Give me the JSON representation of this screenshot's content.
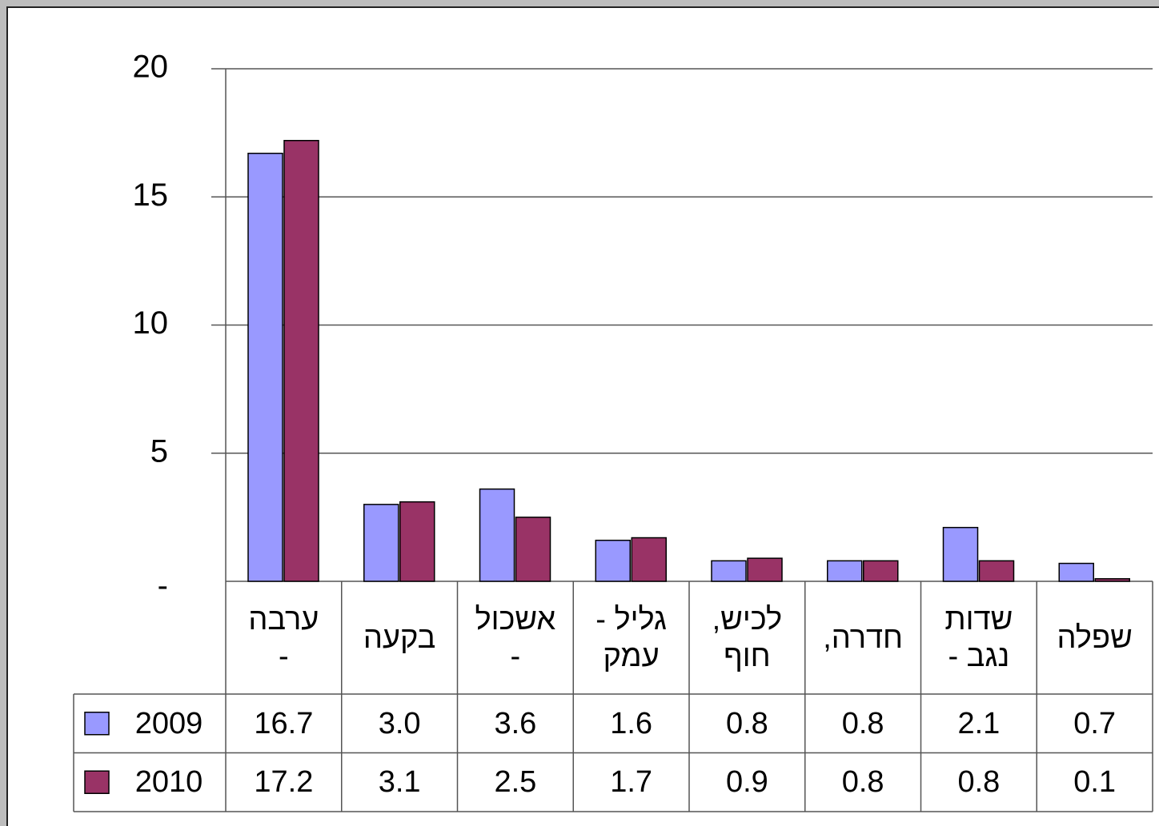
{
  "chart_data": {
    "type": "bar",
    "categories": [
      "ערבה\n-",
      "בקעה",
      "אשכול\n-",
      "גליל -\nעמק",
      "לכיש,\nחוף",
      "חדרה,",
      "שדות\nנגב -",
      "שפלה"
    ],
    "series": [
      {
        "name": "2009",
        "color": "#9999ff",
        "values": [
          16.7,
          3.0,
          3.6,
          1.6,
          0.8,
          0.8,
          2.1,
          0.7
        ],
        "value_labels": [
          "16.7",
          "3.0",
          "3.6",
          "1.6",
          "0.8",
          "0.8",
          "2.1",
          "0.7"
        ]
      },
      {
        "name": "2010",
        "color": "#993366",
        "values": [
          17.2,
          3.1,
          2.5,
          1.7,
          0.9,
          0.8,
          0.8,
          0.1
        ],
        "value_labels": [
          "17.2",
          "3.1",
          "2.5",
          "1.7",
          "0.9",
          "0.8",
          "0.8",
          "0.1"
        ]
      }
    ],
    "ylim": [
      0,
      20
    ],
    "yticks": [
      {
        "value": 0,
        "label": "-"
      },
      5,
      10,
      15,
      20
    ],
    "grid": true
  }
}
